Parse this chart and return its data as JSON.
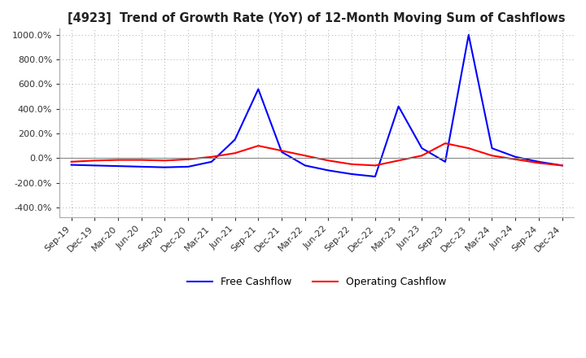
{
  "title": "[4923]  Trend of Growth Rate (YoY) of 12-Month Moving Sum of Cashflows",
  "x_labels": [
    "Sep-19",
    "Dec-19",
    "Mar-20",
    "Jun-20",
    "Sep-20",
    "Dec-20",
    "Mar-21",
    "Jun-21",
    "Sep-21",
    "Dec-21",
    "Mar-22",
    "Jun-22",
    "Sep-22",
    "Dec-22",
    "Mar-23",
    "Jun-23",
    "Sep-23",
    "Dec-23",
    "Mar-24",
    "Jun-24",
    "Sep-24",
    "Dec-24"
  ],
  "operating_cashflow": [
    -30,
    -20,
    -15,
    -15,
    -20,
    -10,
    10,
    40,
    100,
    60,
    20,
    -20,
    -50,
    -60,
    -20,
    20,
    120,
    80,
    20,
    -10,
    -40,
    -60
  ],
  "free_cashflow": [
    -55,
    -60,
    -65,
    -70,
    -75,
    -70,
    -30,
    150,
    560,
    50,
    -60,
    -100,
    -130,
    -150,
    420,
    80,
    -30,
    1000,
    80,
    10,
    -30,
    -60
  ],
  "ylim": [
    -480,
    1050
  ],
  "yticks": [
    -400,
    -200,
    0,
    200,
    400,
    600,
    800,
    1000
  ],
  "operating_color": "#ff0000",
  "free_color": "#0000ff",
  "grid_color": "#aaaaaa",
  "background_color": "#ffffff",
  "zero_line_color": "#888888"
}
